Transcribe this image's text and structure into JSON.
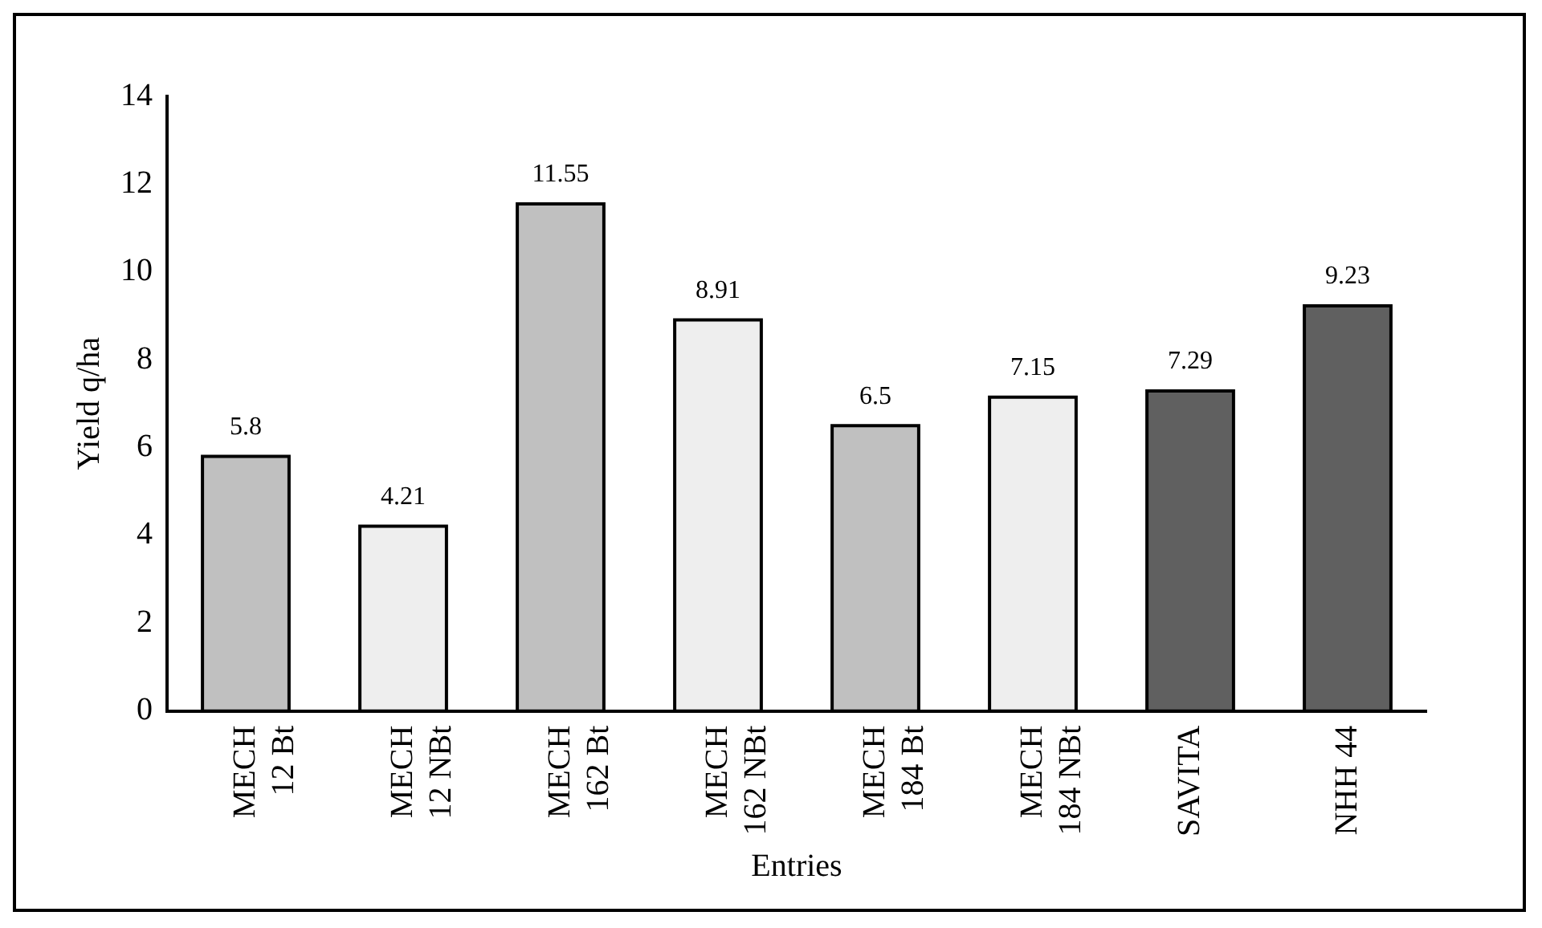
{
  "chart_data": {
    "type": "bar",
    "xlabel": "Entries",
    "ylabel": "Yield q/ha",
    "categories": [
      "MECH 12 Bt",
      "MECH 12 NBt",
      "MECH 162 Bt",
      "MECH 162 NBt",
      "MECH 184 Bt",
      "MECH 184 NBt",
      "SAVITA",
      "NHH 44"
    ],
    "values": [
      5.8,
      4.21,
      11.55,
      8.91,
      6.5,
      7.15,
      7.29,
      9.23
    ],
    "colors": [
      "#c0c0c0",
      "#eeeeee",
      "#c0c0c0",
      "#eeeeee",
      "#c0c0c0",
      "#eeeeee",
      "#606060",
      "#606060"
    ],
    "ylim": [
      0,
      14
    ],
    "yticks": [
      0,
      2,
      4,
      6,
      8,
      10,
      12,
      14
    ],
    "grid": false,
    "legend": false,
    "data_labels": true
  }
}
